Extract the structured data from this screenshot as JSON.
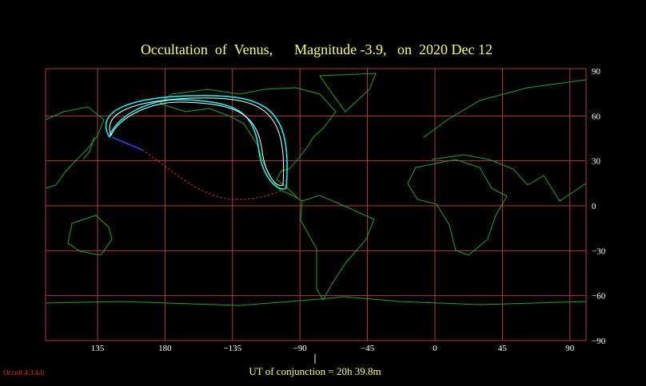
{
  "title": "Occultation  of  Venus,      Magnitude -3.9,   on  2020 Dec 12",
  "longitude_labels": [
    "135",
    "180",
    "−135",
    "−90",
    "−45",
    "0",
    "45",
    "90"
  ],
  "latitude_labels": [
    "90",
    "60",
    "30",
    "0",
    "−30",
    "−60",
    "−90"
  ],
  "footer": "UT of conjunction = 20h 39.8m",
  "version": "Occult 4.3.4.0"
}
